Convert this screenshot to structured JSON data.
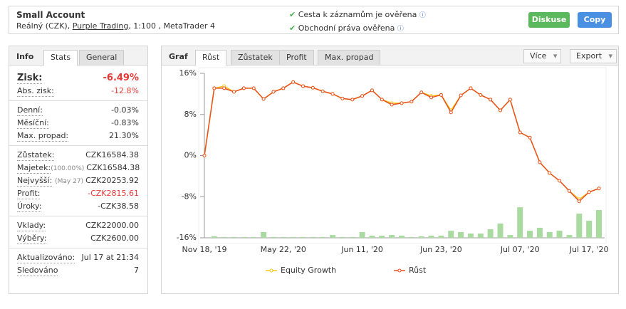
{
  "header": {
    "title": "Small Account",
    "subtitle_prefix": "Reálný (CZK), ",
    "broker": "Purple Trading",
    "subtitle_suffix": ", 1:100 , MetaTrader 4",
    "checks": [
      "Cesta k záznamům je ověřena",
      "Obchodní práva ověřena"
    ],
    "buttons": [
      "Diskuse",
      "Copy"
    ]
  },
  "left": {
    "tabs": [
      "Info",
      "Stats",
      "General"
    ],
    "groups": [
      [
        {
          "label": "Zisk:",
          "value": "-6.49%",
          "color": "#e53935",
          "big": true
        },
        {
          "label": "Abs. zisk:",
          "value": "-12.8%",
          "color": "#e53935"
        }
      ],
      [
        {
          "label": "Denní:",
          "value": "-0.03%"
        },
        {
          "label": "Měsíční:",
          "value": "-0.83%"
        },
        {
          "label": "Max. propad:",
          "value": "21.30%"
        }
      ],
      [
        {
          "label": "Zůstatek:",
          "value": "CZK16584.38"
        },
        {
          "label": "Majetek:",
          "note": "(100.00%)",
          "value": "CZK16584.38"
        },
        {
          "label": "Nejvyšší:",
          "note": "(May 27)",
          "value": "CZK20253.92"
        },
        {
          "label": "Profit:",
          "value": "-CZK2815.61",
          "color": "#e53935"
        },
        {
          "label": "Úroky:",
          "value": "-CZK38.58"
        }
      ],
      [
        {
          "label": "Vklady:",
          "value": "CZK22000.00"
        },
        {
          "label": "Výběry:",
          "value": "CZK2600.00"
        }
      ],
      [
        {
          "label": "Aktualizováno:",
          "value": "Jul 17 at 21:34"
        },
        {
          "label": "Sledováno",
          "value": "7"
        }
      ]
    ]
  },
  "right": {
    "tabs": [
      "Graf",
      "Růst",
      "Zůstatek",
      "Profit",
      "Max. propad"
    ],
    "menus": [
      "Více",
      "Export"
    ]
  },
  "chart_data": {
    "type": "line",
    "categories": [
      "Nov 18, '19",
      null,
      null,
      null,
      null,
      null,
      null,
      null,
      "May 22, '20",
      null,
      null,
      null,
      null,
      null,
      null,
      null,
      "Jun 11, '20",
      null,
      null,
      null,
      null,
      null,
      null,
      null,
      "Jun 23, '20",
      null,
      null,
      null,
      null,
      null,
      null,
      null,
      "Jul 07, '20",
      null,
      null,
      null,
      null,
      null,
      null,
      "Jul 17, '20",
      null
    ],
    "ylim": [
      -16,
      16
    ],
    "yticks": [
      {
        "value": -16,
        "label": "-16%"
      },
      {
        "value": -8,
        "label": "-8%"
      },
      {
        "value": 0,
        "label": "0%"
      },
      {
        "value": 8,
        "label": "8%"
      },
      {
        "value": 16,
        "label": "16%"
      }
    ],
    "y2lim": [
      0,
      100
    ],
    "series": [
      {
        "name": "Equity Growth",
        "color": "#f5c518",
        "values": [
          0,
          13.1,
          13.5,
          12.4,
          13.1,
          13.1,
          11.0,
          12.4,
          13.1,
          14.3,
          13.5,
          13.2,
          12.5,
          12.0,
          11.1,
          10.9,
          11.6,
          12.7,
          10.9,
          10.2,
          10.2,
          10.5,
          12.3,
          11.6,
          11.8,
          8.8,
          11.7,
          13.1,
          11.8,
          10.9,
          8.8,
          10.9,
          4.5,
          3.5,
          -1.3,
          -3.4,
          -4.9,
          -6.9,
          -8.5,
          -7.1,
          -6.4
        ]
      },
      {
        "name": "Růst",
        "color": "#e8501e",
        "values": [
          0,
          13.1,
          13.1,
          12.4,
          13.1,
          13.1,
          11.0,
          12.4,
          13.1,
          14.3,
          13.5,
          13.2,
          12.5,
          12.0,
          11.1,
          10.9,
          11.6,
          12.7,
          10.9,
          9.9,
          10.2,
          10.5,
          12.3,
          11.3,
          11.8,
          8.4,
          11.7,
          13.1,
          11.8,
          10.9,
          8.8,
          10.9,
          4.5,
          3.5,
          -1.3,
          -3.4,
          -4.9,
          -6.9,
          -8.9,
          -7.1,
          -6.4
        ]
      },
      {
        "color": "#a9dba0",
        "axis": "y2",
        "values": [
          0,
          1,
          0.5,
          0.5,
          0.5,
          0.5,
          3.5,
          0.5,
          0.5,
          0.5,
          0.5,
          0.5,
          0.5,
          1.7,
          0.5,
          0.5,
          3.5,
          1.3,
          1.3,
          1.7,
          1.3,
          0.5,
          0.9,
          1.3,
          1.3,
          4.3,
          3.5,
          2.6,
          2.6,
          5.2,
          8.7,
          1.7,
          18.6,
          4.3,
          6.1,
          3.5,
          4.3,
          1.7,
          14.7,
          10.4,
          16.9
        ]
      }
    ]
  }
}
